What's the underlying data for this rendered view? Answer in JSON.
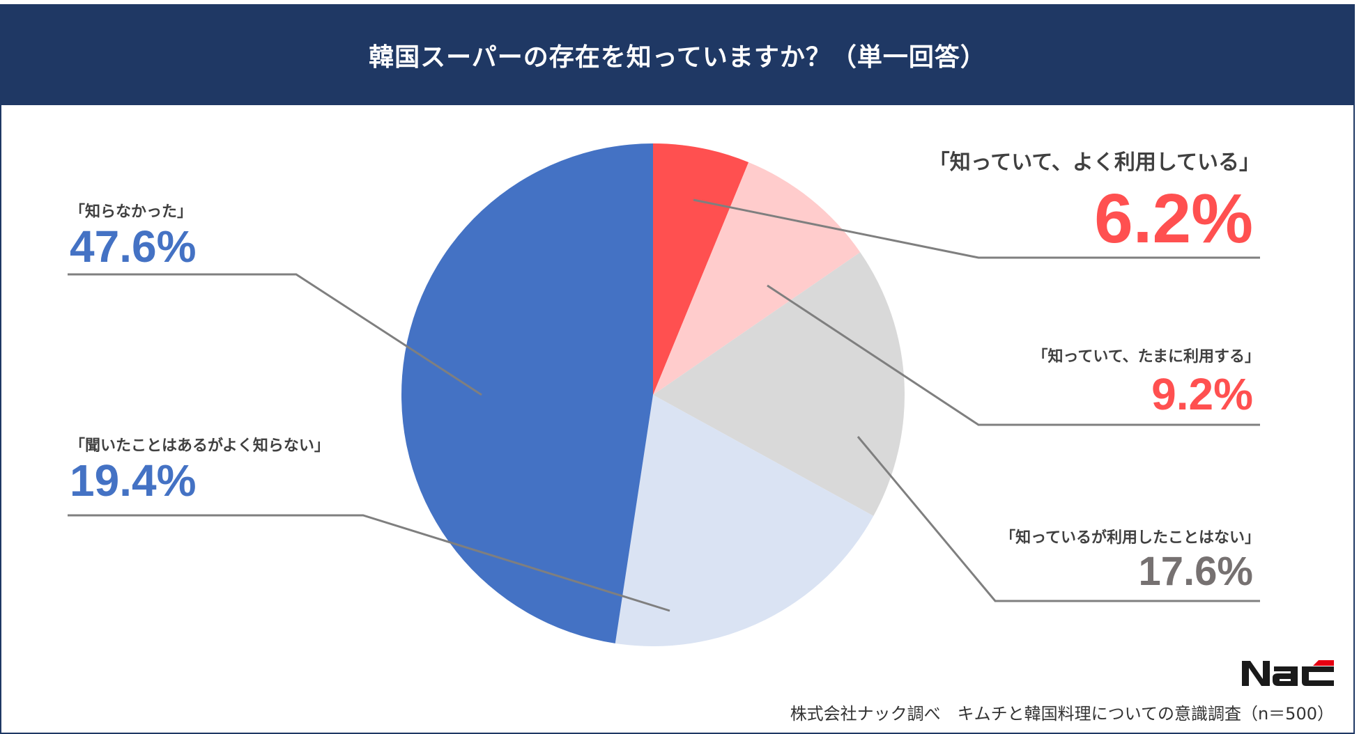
{
  "header": {
    "title": "韓国スーパーの存在を知っていますか？（単一回答）"
  },
  "colors": {
    "header_bg": "#1f3864",
    "slice_often": "#ff5050",
    "slice_sometimes": "#ffcccc",
    "slice_never_used": "#d9d9d9",
    "slice_heard": "#dae3f3",
    "slice_unknown": "#4472c4",
    "red_text": "#ff5050",
    "blue_text": "#4472c4",
    "gray_text": "#767171",
    "leader_line": "#7f7f7f"
  },
  "labels": {
    "often": {
      "text": "「知っていて、よく利用している」",
      "value": "6.2%"
    },
    "sometimes": {
      "text": "「知っていて、たまに利用する」",
      "value": "9.2%"
    },
    "never_used": {
      "text": "「知っているが利用したことはない」",
      "value": "17.6%"
    },
    "heard": {
      "text": "「聞いたことはあるがよく知らない」",
      "value": "19.4%"
    },
    "unknown": {
      "text": "「知らなかった」",
      "value": "47.6%"
    }
  },
  "footer": {
    "source": "株式会社ナック調べ　キムチと韓国料理についての意識調査（n＝500）",
    "logo": "NAC"
  },
  "chart_data": {
    "type": "pie",
    "title": "韓国スーパーの存在を知っていますか？（単一回答）",
    "categories": [
      "知っていて、よく利用している",
      "知っていて、たまに利用する",
      "知っているが利用したことはない",
      "聞いたことはあるがよく知らない",
      "知らなかった"
    ],
    "values": [
      6.2,
      9.2,
      17.6,
      19.4,
      47.6
    ],
    "unit": "%",
    "start_angle": "12 o'clock",
    "direction": "clockwise",
    "colors": [
      "#ff5050",
      "#ffcccc",
      "#d9d9d9",
      "#dae3f3",
      "#4472c4"
    ],
    "legend": "none (callout labels with leader lines)",
    "n": 500,
    "source": "株式会社ナック調べ　キムチと韓国料理についての意識調査（n＝500）"
  }
}
